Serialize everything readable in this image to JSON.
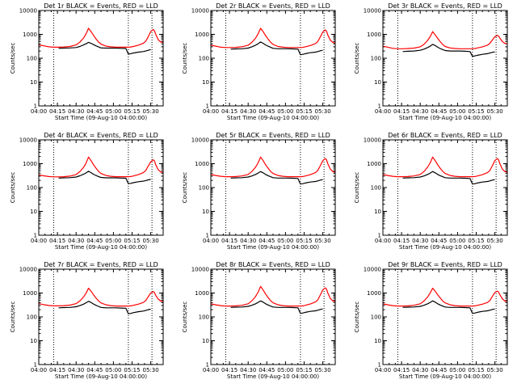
{
  "chart_data": {
    "type": "line",
    "layout": "3x3 grid of panels",
    "yscale": "log",
    "ylim": [
      1,
      10000
    ],
    "y_ticks": [
      "1",
      "10",
      "100",
      "1000",
      "10000"
    ],
    "ylabel": "Counts/sec",
    "xlabel": "Start Time (09-Aug-10 04:00:00)",
    "x_ticks": [
      "04:00",
      "04:15",
      "04:30",
      "04:45",
      "05:00",
      "05:15",
      "05:30"
    ],
    "x_tick_minutes": [
      0,
      15,
      30,
      45,
      60,
      75,
      90
    ],
    "xlim_minutes": [
      0,
      100
    ],
    "vertical_dotted_lines_minutes": [
      12,
      72,
      91
    ],
    "colors": {
      "events": "#000000",
      "lld": "#ff0000",
      "axis": "#000000"
    },
    "x_minutes": [
      0,
      4,
      8,
      12,
      16,
      20,
      25,
      30,
      33,
      36,
      38,
      40,
      42,
      44,
      46,
      48,
      50,
      54,
      58,
      62,
      66,
      70,
      72,
      74,
      76,
      80,
      84,
      86,
      88,
      90,
      92,
      93,
      94,
      96,
      98,
      100
    ],
    "panels": [
      {
        "title": "Det 1r BLACK = Events, RED = LLD",
        "series": [
          {
            "name": "Events",
            "color": "#000000",
            "values": [
              null,
              null,
              null,
              null,
              260,
              265,
              270,
              280,
              310,
              360,
              400,
              460,
              420,
              370,
              330,
              300,
              270,
              265,
              265,
              265,
              260,
              255,
              150,
              155,
              165,
              180,
              190,
              200,
              215,
              230,
              null,
              null,
              null,
              null,
              null,
              null
            ]
          },
          {
            "name": "LLD",
            "color": "#ff0000",
            "values": [
              360,
              330,
              300,
              290,
              290,
              295,
              310,
              360,
              470,
              700,
              1050,
              1800,
              1300,
              900,
              650,
              480,
              390,
              320,
              300,
              290,
              290,
              290,
              290,
              295,
              310,
              350,
              420,
              520,
              800,
              1300,
              1600,
              1400,
              1000,
              600,
              480,
              450
            ]
          }
        ]
      },
      {
        "title": "Det 2r BLACK = Events, RED = LLD",
        "series": [
          {
            "name": "Events",
            "color": "#000000",
            "values": [
              null,
              null,
              null,
              null,
              240,
              245,
              250,
              265,
              300,
              350,
              400,
              480,
              420,
              360,
              320,
              290,
              260,
              250,
              250,
              250,
              245,
              240,
              140,
              145,
              155,
              170,
              180,
              190,
              205,
              215,
              null,
              null,
              null,
              null,
              null,
              null
            ]
          },
          {
            "name": "LLD",
            "color": "#ff0000",
            "values": [
              350,
              320,
              290,
              280,
              280,
              285,
              300,
              350,
              460,
              700,
              1050,
              1800,
              1300,
              880,
              640,
              470,
              380,
              310,
              290,
              280,
              280,
              280,
              280,
              285,
              300,
              340,
              410,
              500,
              780,
              1250,
              1550,
              1350,
              950,
              580,
              460,
              430
            ]
          }
        ]
      },
      {
        "title": "Det 3r BLACK = Events, RED = LLD",
        "series": [
          {
            "name": "Events",
            "color": "#000000",
            "values": [
              null,
              null,
              null,
              null,
              190,
              195,
              200,
              215,
              240,
              280,
              320,
              380,
              340,
              290,
              255,
              230,
              210,
              200,
              200,
              200,
              195,
              190,
              120,
              125,
              132,
              145,
              155,
              165,
              175,
              185,
              null,
              null,
              null,
              null,
              null,
              null
            ]
          },
          {
            "name": "LLD",
            "color": "#ff0000",
            "values": [
              320,
              290,
              260,
              250,
              250,
              255,
              265,
              300,
              380,
              560,
              800,
              1300,
              950,
              680,
              500,
              380,
              310,
              270,
              255,
              250,
              250,
              250,
              250,
              255,
              270,
              300,
              350,
              420,
              580,
              800,
              900,
              850,
              700,
              500,
              420,
              400
            ]
          }
        ]
      },
      {
        "title": "Det 4r BLACK = Events, RED = LLD",
        "series": [
          {
            "name": "Events",
            "color": "#000000",
            "values": [
              null,
              null,
              null,
              null,
              250,
              255,
              260,
              275,
              310,
              360,
              410,
              480,
              420,
              360,
              320,
              290,
              265,
              255,
              255,
              255,
              250,
              245,
              145,
              150,
              160,
              175,
              185,
              195,
              210,
              220,
              null,
              null,
              null,
              null,
              null,
              null
            ]
          },
          {
            "name": "LLD",
            "color": "#ff0000",
            "values": [
              340,
              310,
              290,
              280,
              280,
              285,
              300,
              350,
              460,
              700,
              1050,
              1900,
              1350,
              900,
              650,
              480,
              390,
              320,
              295,
              285,
              285,
              285,
              285,
              290,
              305,
              345,
              420,
              520,
              800,
              1200,
              1450,
              1300,
              900,
              560,
              450,
              420
            ]
          }
        ]
      },
      {
        "title": "Det 5r BLACK = Events, RED = LLD",
        "series": [
          {
            "name": "Events",
            "color": "#000000",
            "values": [
              null,
              null,
              null,
              null,
              250,
              255,
              260,
              275,
              305,
              355,
              405,
              470,
              415,
              355,
              315,
              285,
              260,
              250,
              250,
              250,
              245,
              240,
              140,
              145,
              155,
              170,
              180,
              190,
              205,
              215,
              null,
              null,
              null,
              null,
              null,
              null
            ]
          },
          {
            "name": "LLD",
            "color": "#ff0000",
            "values": [
              350,
              320,
              295,
              285,
              285,
              290,
              305,
              355,
              470,
              720,
              1080,
              1900,
              1350,
              900,
              650,
              480,
              390,
              320,
              295,
              285,
              285,
              285,
              285,
              290,
              305,
              345,
              420,
              520,
              820,
              1350,
              1650,
              1450,
              1000,
              600,
              470,
              440
            ]
          }
        ]
      },
      {
        "title": "Det 6r BLACK = Events, RED = LLD",
        "series": [
          {
            "name": "Events",
            "color": "#000000",
            "values": [
              null,
              null,
              null,
              null,
              250,
              255,
              260,
              275,
              305,
              355,
              405,
              470,
              415,
              355,
              315,
              285,
              260,
              250,
              250,
              250,
              245,
              240,
              140,
              145,
              155,
              170,
              180,
              190,
              205,
              215,
              null,
              null,
              null,
              null,
              null,
              null
            ]
          },
          {
            "name": "LLD",
            "color": "#ff0000",
            "values": [
              350,
              320,
              295,
              285,
              285,
              290,
              305,
              355,
              470,
              720,
              1080,
              1900,
              1350,
              900,
              650,
              480,
              390,
              320,
              295,
              285,
              285,
              285,
              285,
              290,
              305,
              345,
              420,
              520,
              820,
              1350,
              1650,
              1450,
              1000,
              600,
              470,
              440
            ]
          }
        ]
      },
      {
        "title": "Det 7r BLACK = Events, RED = LLD",
        "series": [
          {
            "name": "Events",
            "color": "#000000",
            "values": [
              null,
              null,
              null,
              null,
              240,
              245,
              250,
              265,
              295,
              340,
              390,
              450,
              400,
              345,
              305,
              275,
              250,
              240,
              240,
              240,
              235,
              230,
              135,
              140,
              150,
              165,
              175,
              185,
              200,
              210,
              null,
              null,
              null,
              null,
              null,
              null
            ]
          },
          {
            "name": "LLD",
            "color": "#ff0000",
            "values": [
              360,
              325,
              300,
              290,
              290,
              295,
              310,
              360,
              460,
              680,
              980,
              1600,
              1200,
              840,
              620,
              470,
              385,
              320,
              295,
              285,
              285,
              285,
              285,
              290,
              305,
              340,
              400,
              480,
              700,
              1000,
              1150,
              1050,
              800,
              560,
              460,
              430
            ]
          }
        ]
      },
      {
        "title": "Det 8r BLACK = Events, RED = LLD",
        "series": [
          {
            "name": "Events",
            "color": "#000000",
            "values": [
              null,
              null,
              null,
              null,
              250,
              255,
              260,
              275,
              305,
              355,
              405,
              470,
              415,
              355,
              315,
              285,
              260,
              250,
              250,
              250,
              245,
              240,
              140,
              145,
              155,
              170,
              180,
              190,
              205,
              215,
              null,
              null,
              null,
              null,
              null,
              null
            ]
          },
          {
            "name": "LLD",
            "color": "#ff0000",
            "values": [
              350,
              320,
              295,
              285,
              285,
              290,
              305,
              355,
              470,
              720,
              1080,
              1900,
              1350,
              900,
              650,
              480,
              390,
              320,
              295,
              285,
              285,
              285,
              285,
              290,
              305,
              345,
              420,
              520,
              820,
              1350,
              1650,
              1450,
              1000,
              600,
              470,
              440
            ]
          }
        ]
      },
      {
        "title": "Det 9r BLACK = Events, RED = LLD",
        "series": [
          {
            "name": "Events",
            "color": "#000000",
            "values": [
              null,
              null,
              null,
              null,
              250,
              255,
              260,
              275,
              305,
              355,
              405,
              470,
              415,
              355,
              315,
              285,
              260,
              250,
              250,
              250,
              245,
              240,
              140,
              145,
              155,
              170,
              180,
              190,
              205,
              215,
              null,
              null,
              null,
              null,
              null,
              null
            ]
          },
          {
            "name": "LLD",
            "color": "#ff0000",
            "values": [
              350,
              320,
              295,
              285,
              285,
              290,
              305,
              355,
              460,
              680,
              1000,
              1600,
              1200,
              850,
              630,
              470,
              385,
              320,
              295,
              285,
              285,
              285,
              285,
              290,
              305,
              340,
              400,
              480,
              720,
              1050,
              1200,
              1100,
              850,
              580,
              460,
              430
            ]
          }
        ]
      }
    ]
  }
}
